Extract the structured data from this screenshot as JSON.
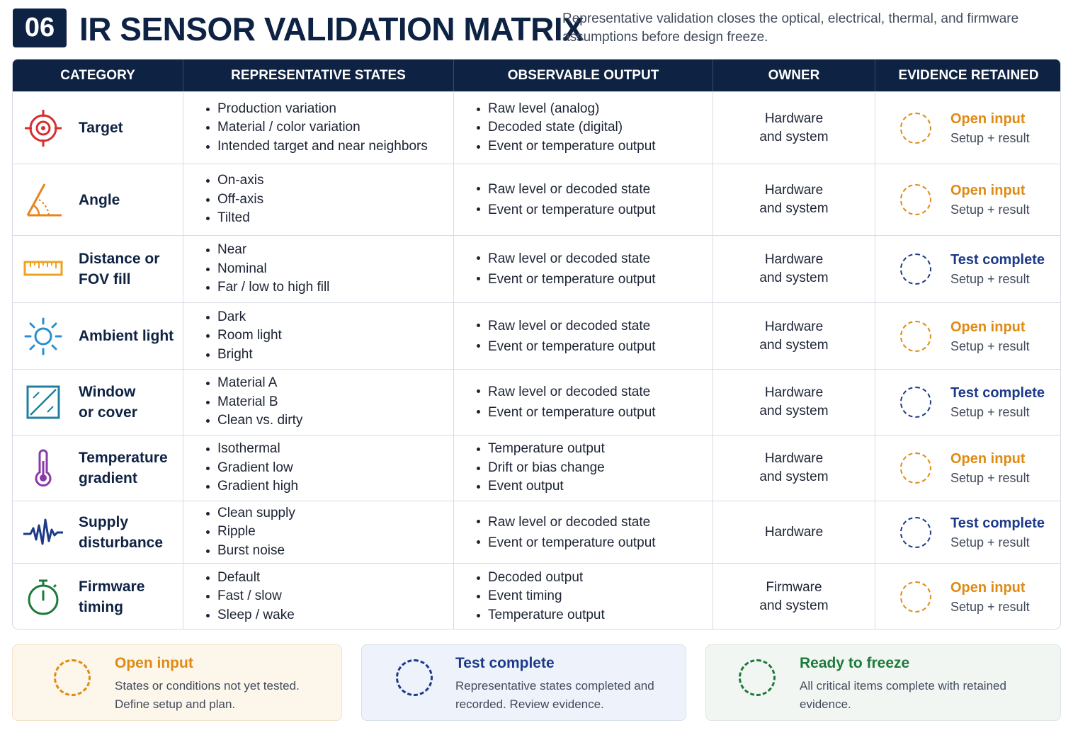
{
  "header": {
    "badge": "06",
    "title": "IR SENSOR VALIDATION MATRIX",
    "subtitle": "Representative validation closes the optical, electrical, thermal, and firmware assumptions before design freeze."
  },
  "table": {
    "columns": [
      "CATEGORY",
      "REPRESENTATIVE STATES",
      "OBSERVABLE OUTPUT",
      "OWNER",
      "EVIDENCE RETAINED"
    ],
    "rows": [
      {
        "category": "Target",
        "icon": "target-icon",
        "states": [
          "Production variation",
          "Material / color variation",
          "Intended target and near neighbors"
        ],
        "outputs": [
          "Raw level (analog)",
          "Decoded state (digital)",
          "Event or temperature output"
        ],
        "owner": "Hardware\nand system",
        "status": "Open input",
        "evidence": "Setup + result"
      },
      {
        "category": "Angle",
        "icon": "angle-icon",
        "states": [
          "On-axis",
          "Off-axis",
          "Tilted"
        ],
        "outputs": [
          "Raw level or decoded state",
          "Event or temperature output"
        ],
        "owner": "Hardware\nand system",
        "status": "Open input",
        "evidence": "Setup + result"
      },
      {
        "category": "Distance or\nFOV fill",
        "icon": "ruler-icon",
        "states": [
          "Near",
          "Nominal",
          "Far / low to high fill"
        ],
        "outputs": [
          "Raw level or decoded state",
          "Event or temperature output"
        ],
        "owner": "Hardware\nand system",
        "status": "Test complete",
        "evidence": "Setup + result"
      },
      {
        "category": "Ambient light",
        "icon": "sun-icon",
        "states": [
          "Dark",
          "Room light",
          "Bright"
        ],
        "outputs": [
          "Raw level or decoded state",
          "Event or temperature output"
        ],
        "owner": "Hardware\nand system",
        "status": "Open input",
        "evidence": "Setup + result"
      },
      {
        "category": "Window\nor cover",
        "icon": "window-icon",
        "states": [
          "Material A",
          "Material B",
          "Clean vs. dirty"
        ],
        "outputs": [
          "Raw level or decoded state",
          "Event or temperature output"
        ],
        "owner": "Hardware\nand system",
        "status": "Test complete",
        "evidence": "Setup + result"
      },
      {
        "category": "Temperature\ngradient",
        "icon": "thermometer-icon",
        "states": [
          "Isothermal",
          "Gradient low",
          "Gradient high"
        ],
        "outputs": [
          "Temperature output",
          "Drift or bias change",
          "Event output"
        ],
        "owner": "Hardware\nand system",
        "status": "Open input",
        "evidence": "Setup + result"
      },
      {
        "category": "Supply\ndisturbance",
        "icon": "waveform-icon",
        "states": [
          "Clean supply",
          "Ripple",
          "Burst noise"
        ],
        "outputs": [
          "Raw level or decoded state",
          "Event or temperature output"
        ],
        "owner": "Hardware",
        "status": "Test complete",
        "evidence": "Setup + result"
      },
      {
        "category": "Firmware\ntiming",
        "icon": "stopwatch-icon",
        "states": [
          "Default",
          "Fast / slow",
          "Sleep / wake"
        ],
        "outputs": [
          "Decoded output",
          "Event timing",
          "Temperature output"
        ],
        "owner": "Firmware\nand system",
        "status": "Open input",
        "evidence": "Setup + result"
      }
    ]
  },
  "legend": [
    {
      "key": "open",
      "title": "Open input",
      "desc": "States or conditions not yet tested. Define setup and plan."
    },
    {
      "key": "test",
      "title": "Test complete",
      "desc": "Representative states completed and recorded. Review evidence."
    },
    {
      "key": "ready",
      "title": "Ready to freeze",
      "desc": "All critical items complete with retained evidence."
    }
  ],
  "colors": {
    "navy": "#0e2243",
    "open": "#e08a14",
    "complete": "#1d3a8a",
    "ready": "#1c7a3a",
    "target_icon": "#d62f2f",
    "angle_icon": "#e8851a",
    "ruler_icon": "#f0a21c",
    "sun_icon": "#2a8fd0",
    "window_icon": "#1f7fa0",
    "thermometer_icon": "#8a3aa8",
    "waveform_icon": "#1d3a8a",
    "stopwatch_icon": "#1c7a3a"
  }
}
